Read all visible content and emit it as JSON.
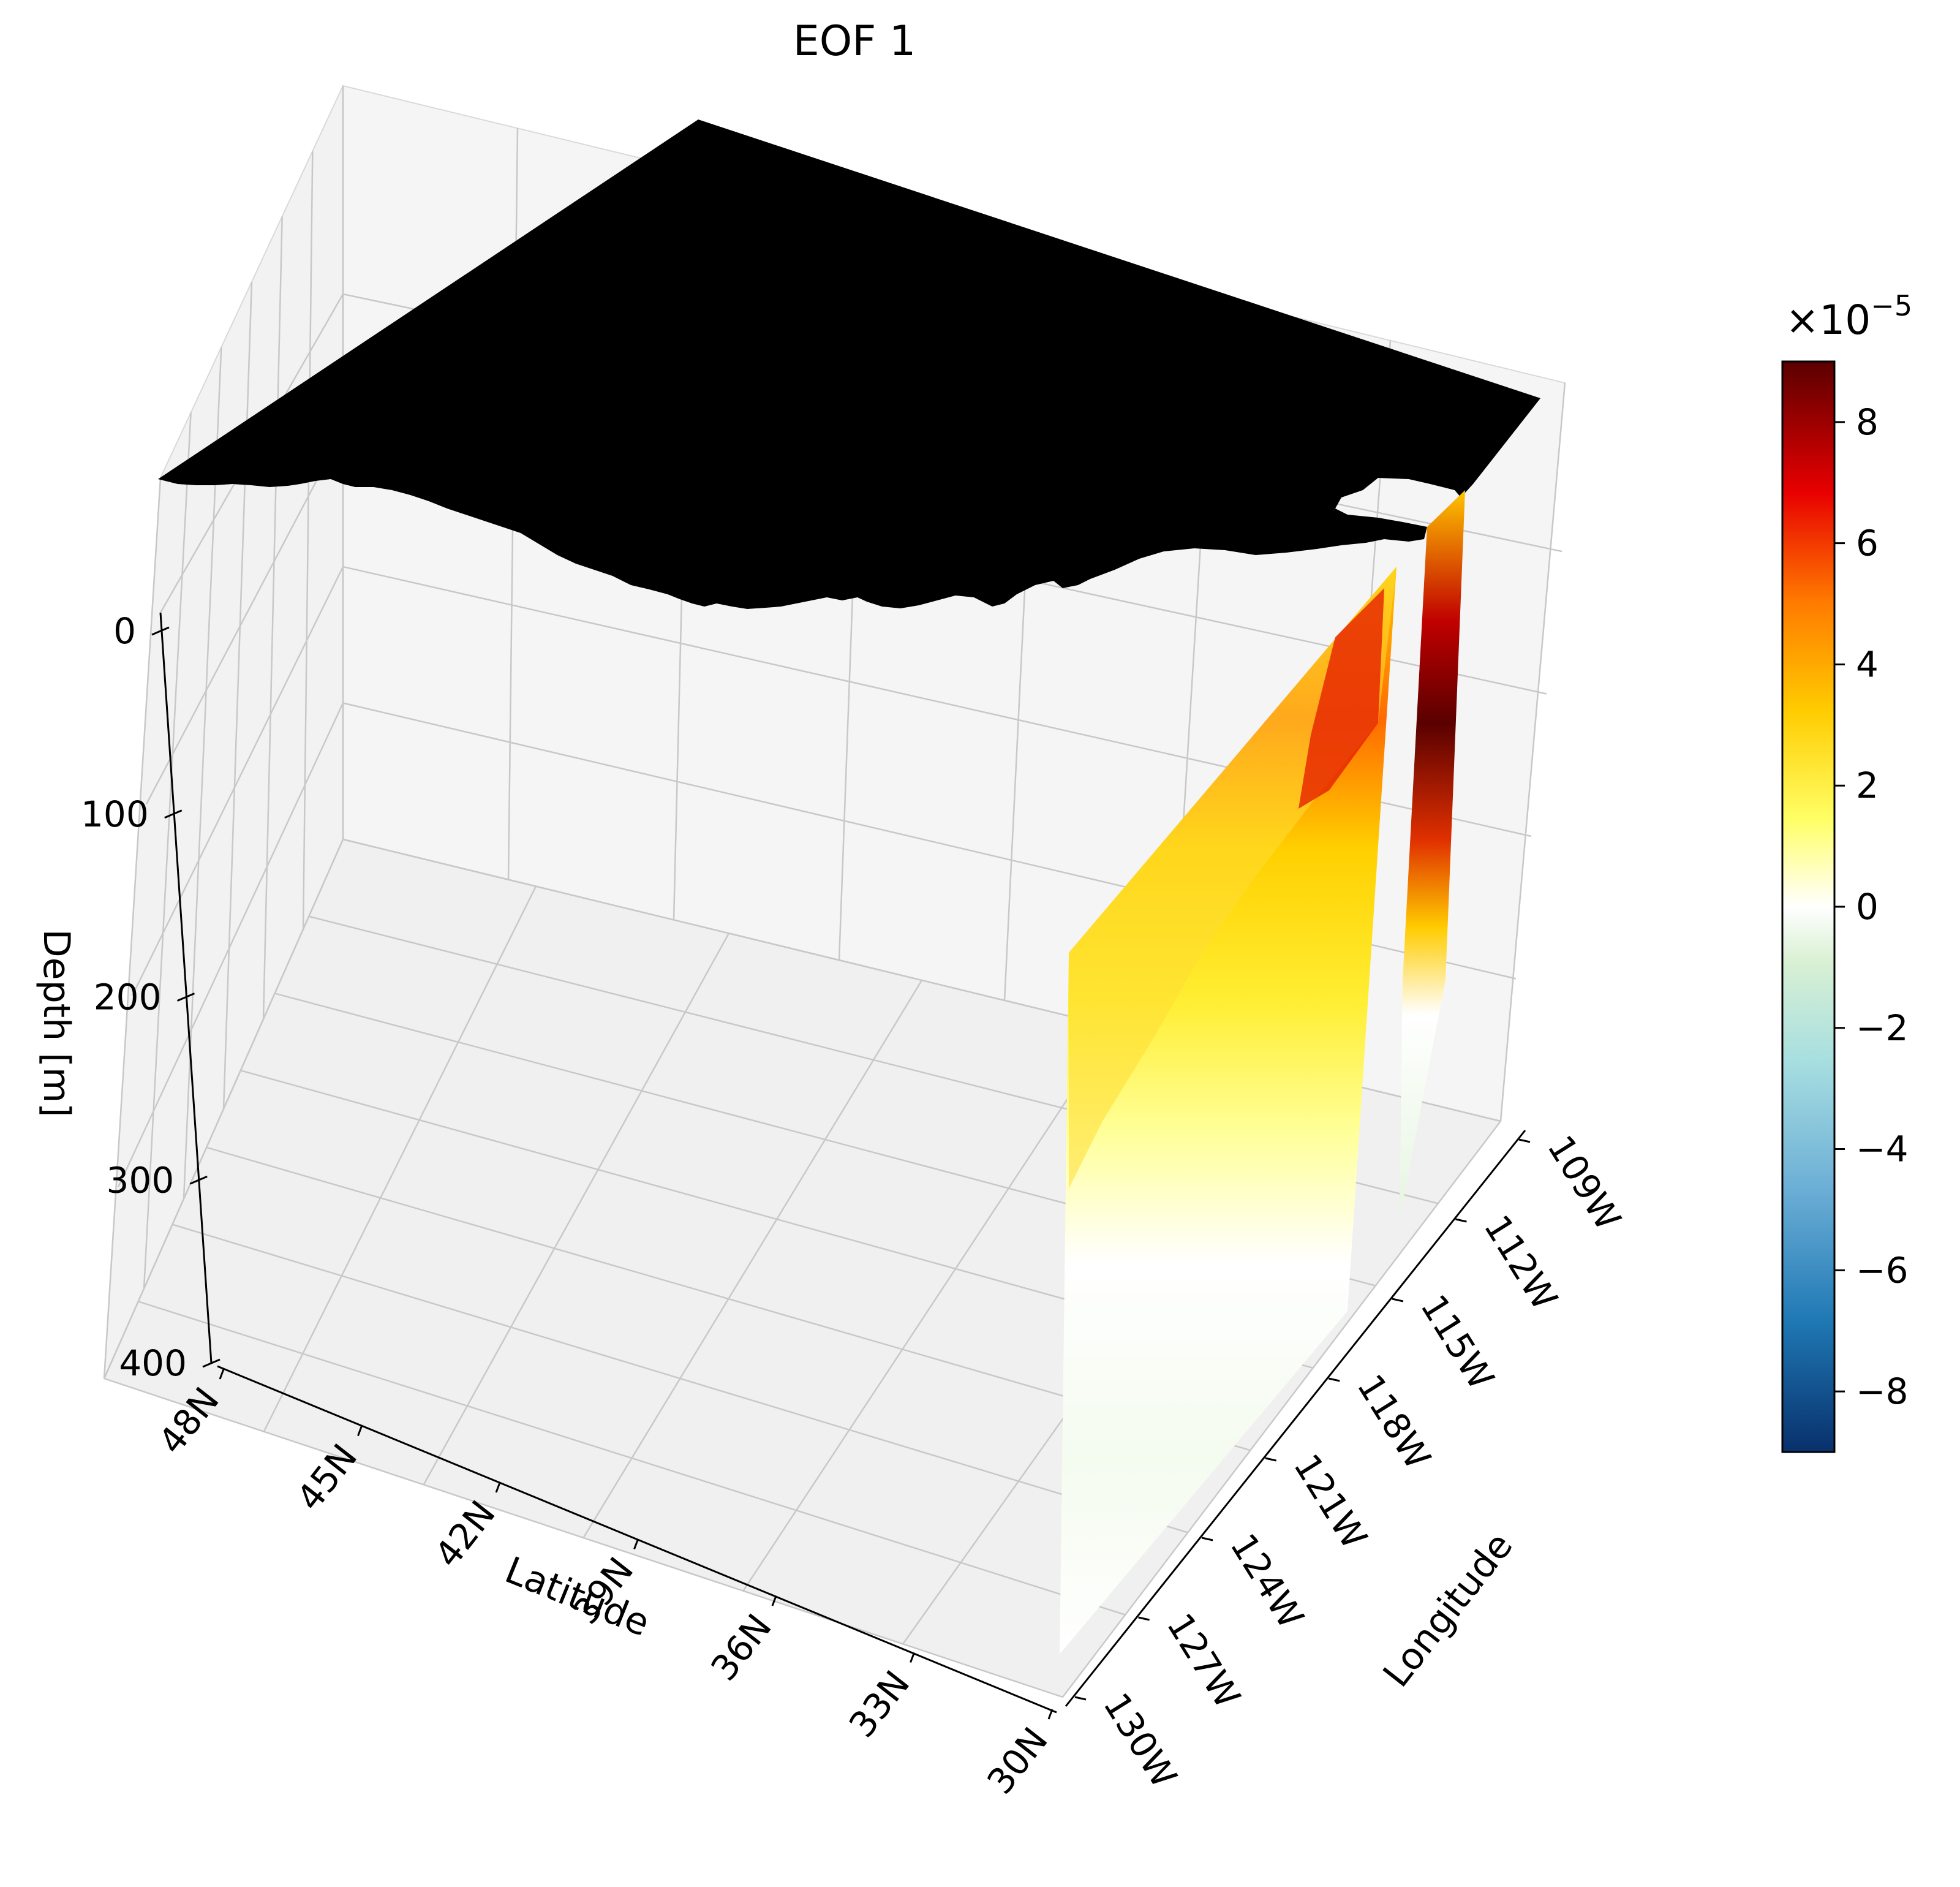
{
  "chart_data": {
    "type": "3d-surface",
    "title": "EOF 1",
    "zlabel": "Depth [m]",
    "xlabel": "Latitude",
    "ylabel": "Longitude",
    "depth_ticks": [
      "0",
      "100",
      "200",
      "300",
      "400"
    ],
    "depth_values": [
      0,
      100,
      200,
      300,
      400
    ],
    "latitude_ticks": [
      "48N",
      "45N",
      "42N",
      "39N",
      "36N",
      "33N",
      "30N"
    ],
    "latitude_values": [
      48,
      45,
      42,
      39,
      36,
      33,
      30
    ],
    "longitude_ticks": [
      "109W",
      "112W",
      "115W",
      "118W",
      "121W",
      "124W",
      "127W",
      "130W"
    ],
    "longitude_values": [
      -109,
      -112,
      -115,
      -118,
      -121,
      -124,
      -127,
      -130
    ],
    "colorbar": {
      "exponent_label": "×10",
      "exponent_power": "−5",
      "tick_labels": [
        "8",
        "6",
        "4",
        "2",
        "0",
        "−2",
        "−4",
        "−6",
        "−8"
      ],
      "tick_values": [
        8,
        6,
        4,
        2,
        0,
        -2,
        -4,
        -6,
        -8
      ],
      "range": [
        -9,
        9
      ],
      "colormap_stops": [
        "#08306b",
        "#1f78b4",
        "#6baed6",
        "#a8dfe0",
        "#d9f0d3",
        "#ffffff",
        "#ffff66",
        "#ffcc00",
        "#ff7a00",
        "#e80000",
        "#5a0000"
      ]
    },
    "sections": [
      {
        "name": "",
        "longitude": -123,
        "depth_range": [
          0,
          400
        ],
        "values_note": ""
      },
      {
        "name": "",
        "longitude": -117,
        "depth_range": [
          0,
          300
        ],
        "values_note": ""
      }
    ],
    "land_mask_color": "#000000",
    "grid": true
  }
}
